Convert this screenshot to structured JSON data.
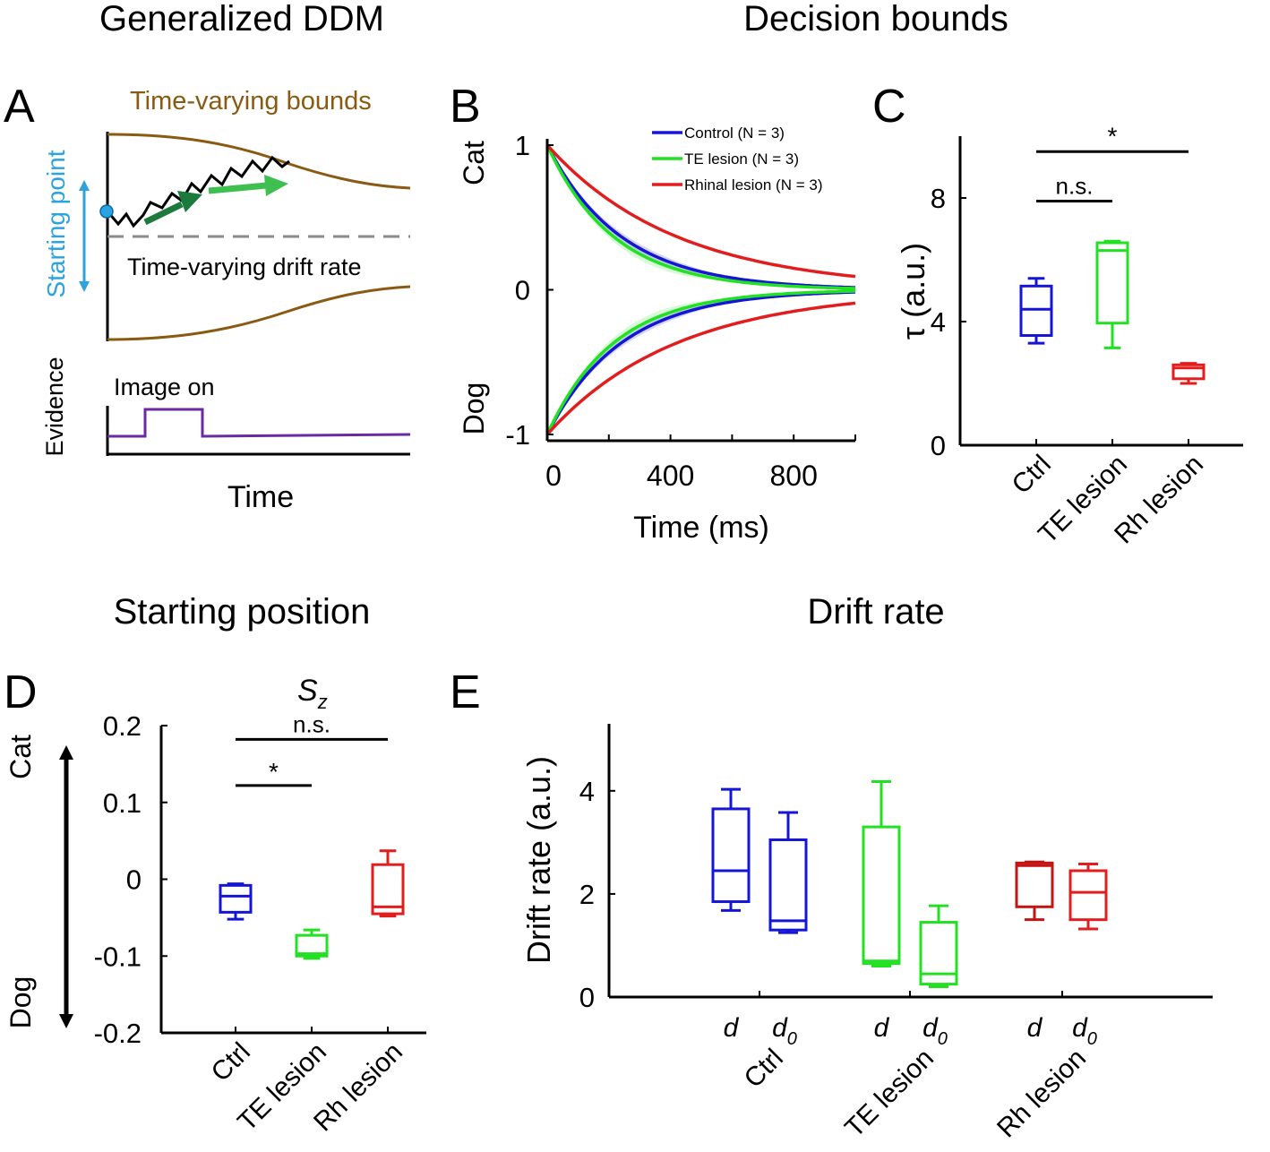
{
  "section_titles": {
    "top_left": "Generalized DDM",
    "top_right": "Decision bounds",
    "bottom_left": "Starting position",
    "bottom_right": "Drift rate"
  },
  "panel_letters": {
    "A": "A",
    "B": "B",
    "C": "C",
    "D": "D",
    "E": "E"
  },
  "colors": {
    "ctrl": "#1515d6",
    "te": "#22e022",
    "rh": "#e21d1d",
    "rh_dark": "#c41414",
    "bound_brown": "#8a5a12",
    "start_blue": "#2aa3df",
    "drift_dark_green": "#1c7a3c",
    "drift_light_green": "#3fbf4f",
    "evidence_purple": "#6a2aa0",
    "dash_gray": "#8a8a8a"
  },
  "panel_a": {
    "bounds_label": "Time-varying bounds",
    "starting_point_label": "Starting point",
    "drift_label": "Time-varying drift rate",
    "evidence_label": "Evidence",
    "image_on_label": "Image on",
    "time_label": "Time"
  },
  "chart_data": [
    {
      "id": "B",
      "type": "line",
      "title": "Decision bounds",
      "xlabel": "Time (ms)",
      "ylabel_top": "Cat",
      "ylabel_bottom": "Dog",
      "xlim": [
        0,
        1000
      ],
      "ylim": [
        -1.05,
        1.05
      ],
      "xticks": [
        0,
        400,
        800
      ],
      "yticks": [
        -1,
        0,
        1
      ],
      "ytick_labels": [
        "-1",
        "0",
        "1"
      ],
      "series": [
        {
          "name": "Control (N = 3)",
          "key": "ctrl",
          "tau_ms": 240,
          "band": 0.03
        },
        {
          "name": "TE lesion (N = 3)",
          "key": "te",
          "tau_ms": 215,
          "band": 0.04
        },
        {
          "name": "Rhinal lesion (N = 3)",
          "key": "rh",
          "tau_ms": 420,
          "band": 0.0
        }
      ]
    },
    {
      "id": "C",
      "type": "box",
      "ylabel": "τ (a.u.)",
      "ylim": [
        0,
        10
      ],
      "yticks": [
        0,
        4,
        8
      ],
      "categories": [
        "Ctrl",
        "TE lesion",
        "Rh lesion"
      ],
      "series": [
        {
          "name": "Ctrl",
          "key": "ctrl",
          "min": 3.3,
          "q1": 3.55,
          "median": 4.4,
          "q3": 5.15,
          "max": 5.4
        },
        {
          "name": "TE lesion",
          "key": "te",
          "min": 3.15,
          "q1": 3.95,
          "median": 6.3,
          "q3": 6.55,
          "max": 6.6
        },
        {
          "name": "Rh lesion",
          "key": "rh",
          "min": 2.0,
          "q1": 2.15,
          "median": 2.5,
          "q3": 2.6,
          "max": 2.65
        }
      ],
      "significance": [
        {
          "from": 0,
          "to": 2,
          "label": "*",
          "y": 9.5
        },
        {
          "from": 0,
          "to": 1,
          "label": "n.s.",
          "y": 7.9
        }
      ]
    },
    {
      "id": "D",
      "type": "box",
      "title": "Starting position",
      "annotation": "S",
      "annotation_sub": "z",
      "ylabel_top": "Cat",
      "ylabel_bottom": "Dog",
      "ylim": [
        -0.2,
        0.2
      ],
      "yticks": [
        -0.2,
        -0.1,
        0,
        0.1,
        0.2
      ],
      "ytick_labels": [
        "-0.2",
        "-0.1",
        "0",
        "0.1",
        "0.2"
      ],
      "categories": [
        "Ctrl",
        "TE lesion",
        "Rh lesion"
      ],
      "series": [
        {
          "name": "Ctrl",
          "key": "ctrl",
          "min": -0.052,
          "q1": -0.043,
          "median": -0.022,
          "q3": -0.008,
          "max": -0.006
        },
        {
          "name": "TE lesion",
          "key": "te",
          "min": -0.103,
          "q1": -0.1,
          "median": -0.097,
          "q3": -0.073,
          "max": -0.066
        },
        {
          "name": "Rh lesion",
          "key": "rh",
          "min": -0.048,
          "q1": -0.045,
          "median": -0.036,
          "q3": 0.019,
          "max": 0.037
        }
      ],
      "significance": [
        {
          "from": 0,
          "to": 2,
          "label": "n.s.",
          "y": 0.182
        },
        {
          "from": 0,
          "to": 1,
          "label": "*",
          "y": 0.122
        }
      ]
    },
    {
      "id": "E",
      "type": "box",
      "title": "Drift rate",
      "ylabel": "Drift rate (a.u.)",
      "ylim": [
        0,
        5.3
      ],
      "yticks": [
        0,
        2,
        4
      ],
      "groups": [
        "Ctrl",
        "TE lesion",
        "Rh lesion"
      ],
      "sub_labels": [
        "d",
        "d",
        "0"
      ],
      "series": [
        {
          "group": "Ctrl",
          "param": "d",
          "key": "ctrl",
          "min": 1.68,
          "q1": 1.85,
          "median": 2.45,
          "q3": 3.65,
          "max": 4.03
        },
        {
          "group": "Ctrl",
          "param": "d0",
          "key": "ctrl",
          "min": 1.25,
          "q1": 1.3,
          "median": 1.48,
          "q3": 3.05,
          "max": 3.58
        },
        {
          "group": "TE lesion",
          "param": "d",
          "key": "te",
          "min": 0.6,
          "q1": 0.65,
          "median": 0.7,
          "q3": 3.3,
          "max": 4.18
        },
        {
          "group": "TE lesion",
          "param": "d0",
          "key": "te",
          "min": 0.2,
          "q1": 0.25,
          "median": 0.45,
          "q3": 1.45,
          "max": 1.77
        },
        {
          "group": "Rh lesion",
          "param": "d",
          "key": "rh_dark",
          "min": 1.5,
          "q1": 1.75,
          "median": 2.55,
          "q3": 2.6,
          "max": 2.62
        },
        {
          "group": "Rh lesion",
          "param": "d0",
          "key": "rh",
          "min": 1.32,
          "q1": 1.5,
          "median": 2.03,
          "q3": 2.45,
          "max": 2.58
        }
      ]
    }
  ]
}
